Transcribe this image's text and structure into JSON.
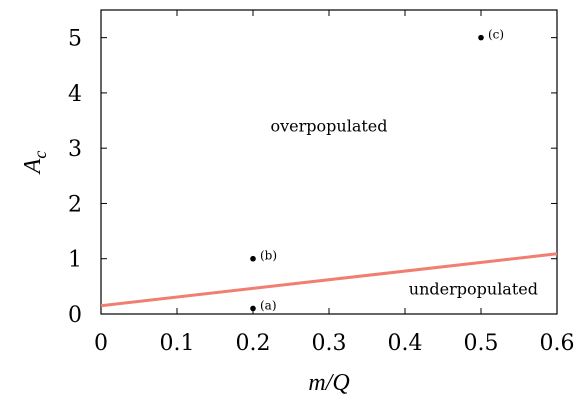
{
  "chart_data": {
    "type": "line",
    "xlabel": "m/Q",
    "ylabel": {
      "base": "A",
      "sub": "c"
    },
    "xlim": [
      0,
      0.6
    ],
    "ylim": [
      0,
      5.5
    ],
    "xticks": [
      0,
      0.1,
      0.2,
      0.3,
      0.4,
      0.5,
      0.6
    ],
    "xtick_labels": [
      "0",
      "0.1",
      "0.2",
      "0.3",
      "0.4",
      "0.5",
      "0.6"
    ],
    "yticks": [
      0,
      1,
      2,
      3,
      4,
      5
    ],
    "ytick_labels": [
      "0",
      "1",
      "2",
      "3",
      "4",
      "5"
    ],
    "grid": false,
    "series": [
      {
        "x": [
          0,
          0.6
        ],
        "y": [
          0.15,
          1.09
        ],
        "color": "#f07f72"
      }
    ],
    "points": [
      {
        "label": "(a)",
        "x": 0.2,
        "y": 0.1
      },
      {
        "label": "(b)",
        "x": 0.2,
        "y": 1.0
      },
      {
        "label": "(c)",
        "x": 0.5,
        "y": 5.0
      }
    ],
    "annotations": [
      {
        "text": "overpopulated",
        "x": 0.3,
        "y": 3.3
      },
      {
        "text": "underpopulated",
        "x": 0.49,
        "y": 0.35
      }
    ]
  }
}
